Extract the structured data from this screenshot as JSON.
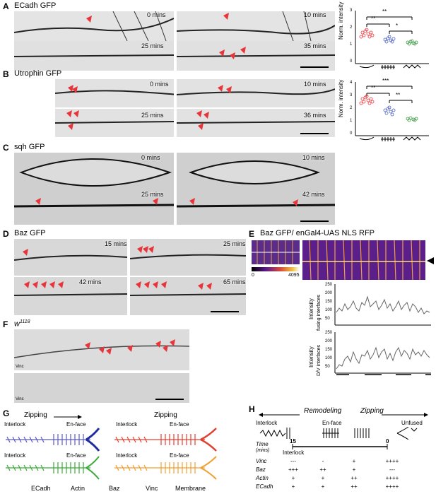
{
  "panels": {
    "A": {
      "letter": "A",
      "title": "ECadh GFP",
      "times": [
        "0 mins",
        "10 mins",
        "25 mins",
        "35 mins"
      ],
      "ylabel": "Norm. intensity",
      "yticks": [
        "3",
        "2",
        "1",
        "0"
      ],
      "sig": [
        "**",
        "**",
        "*"
      ]
    },
    "B": {
      "letter": "B",
      "title": "Utrophin GFP",
      "times": [
        "0 mins",
        "10 mins",
        "25 mins",
        "36 mins"
      ],
      "ylabel": "Norm. intensity",
      "yticks": [
        "4",
        "3",
        "2",
        "1",
        "0"
      ],
      "sig": [
        "***",
        "**",
        "**"
      ]
    },
    "C": {
      "letter": "C",
      "title": "sqh GFP",
      "times": [
        "0 mins",
        "10 mins",
        "25 mins",
        "42 mins"
      ]
    },
    "D": {
      "letter": "D",
      "title": "Baz GFP",
      "times": [
        "15 mins",
        "25 mins",
        "42 mins",
        "65 mins"
      ]
    },
    "E": {
      "letter": "E",
      "title": "Baz GFP/ enGal4-UAS NLS RFP",
      "cbar_min": "0",
      "cbar_max": "4095",
      "ylabel1": "Intensity",
      "ylabel1b": "fusing interfaces",
      "ylabel2": "Intensity",
      "ylabel2b": "D/V interfaces",
      "yticks1": [
        "250",
        "200",
        "150",
        "100",
        "50"
      ],
      "yticks2": [
        "250",
        "200",
        "150",
        "100",
        "50"
      ]
    },
    "F": {
      "letter": "F",
      "title": "w",
      "title_sup": "1118",
      "label1": "Vinc",
      "label2": "Vinc"
    },
    "G": {
      "letter": "G",
      "zipping1": "Zipping",
      "zipping2": "Zipping",
      "interlock": "Interlock",
      "enface": "En-face",
      "labels": [
        "ECadh",
        "Actin",
        "Baz",
        "Vinc",
        "Membrane"
      ]
    },
    "H": {
      "letter": "H",
      "remodeling": "Remodeling",
      "zipping": "Zipping",
      "interlock": "Interlock",
      "enface": "En-face",
      "unfused": "Unfused",
      "time_label": "Time",
      "time_unit": "(mins)",
      "t15": "15",
      "t0": "0",
      "t_interlock": "Interlock",
      "rows": [
        {
          "name": "Vinc",
          "vals": [
            "---",
            "-",
            "+",
            "++++"
          ]
        },
        {
          "name": "Baz",
          "vals": [
            "+++",
            "++",
            "+",
            "---"
          ]
        },
        {
          "name": "Actin",
          "vals": [
            "+",
            "+",
            "++",
            "++++"
          ]
        },
        {
          "name": "ECadh",
          "vals": [
            "+",
            "+",
            "++",
            "++++"
          ]
        }
      ]
    }
  },
  "colors": {
    "sig_red": "#e8353a",
    "blue": "#4a5fbf",
    "green": "#3c9a43",
    "arrow": "#e8353a",
    "ecadh": "#5a59c7",
    "baz": "#1f2ca0",
    "vinc": "#e04030",
    "membrane": "#f0a030",
    "green_line": "#3aaa3a"
  }
}
